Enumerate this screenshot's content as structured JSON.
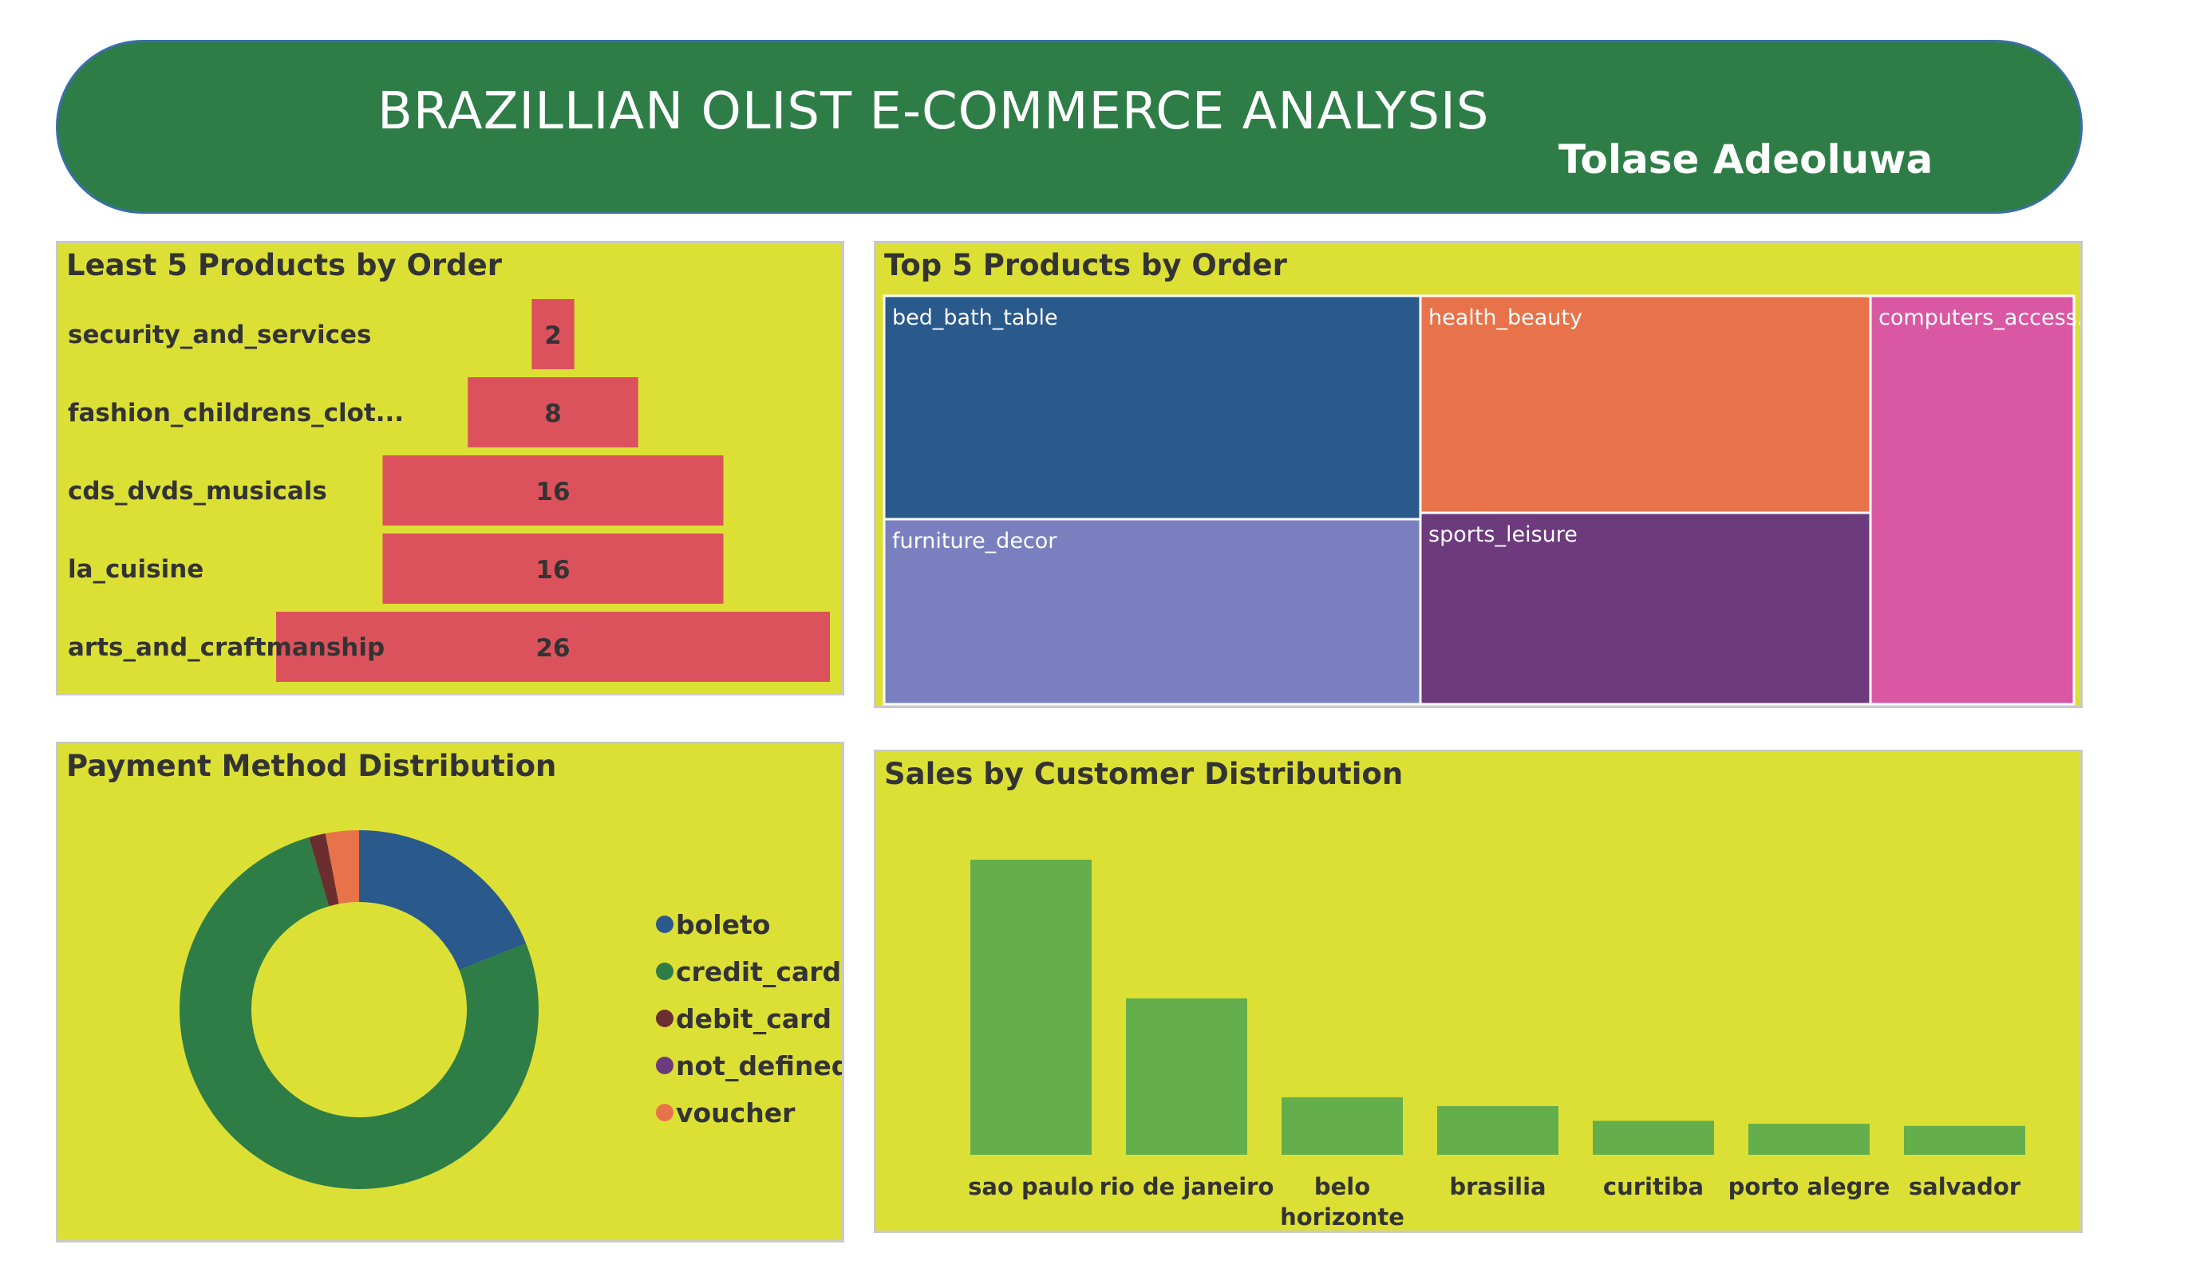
{
  "header": {
    "title": "BRAZILLIAN OLIST E-COMMERCE ANALYSIS",
    "author": "Tolase Adeoluwa"
  },
  "colors": {
    "banner": "#2e7d47",
    "panel": "#dce035",
    "funnel_bar": "#dc525c",
    "sales_bar": "#64ae4c"
  },
  "chart_data": [
    {
      "id": "least",
      "type": "bar",
      "title": "Least 5 Products by Order",
      "categories": [
        "security_and_services",
        "fashion_childrens_clot...",
        "cds_dvds_musicals",
        "la_cuisine",
        "arts_and_craftmanship"
      ],
      "values": [
        2,
        8,
        16,
        16,
        26
      ],
      "orientation": "horizontal-funnel"
    },
    {
      "id": "top",
      "type": "treemap",
      "title": "Top 5 Products by Order",
      "categories": [
        "bed_bath_table",
        "furniture_decor",
        "health_beauty",
        "sports_leisure",
        "computers_access..."
      ],
      "colors": [
        "#2a5a8c",
        "#7a80bf",
        "#e8734a",
        "#6d3a7d",
        "#da57a3"
      ]
    },
    {
      "id": "payment",
      "type": "pie",
      "title": "Payment Method Distribution",
      "categories": [
        "boleto",
        "credit_card",
        "debit_card",
        "not_defined",
        "voucher"
      ],
      "values": [
        19.0,
        76.5,
        1.5,
        0.01,
        3.0
      ],
      "colors": [
        "#2a5a8c",
        "#2e7d47",
        "#6b2e2e",
        "#6d3a7d",
        "#e8734a"
      ],
      "legend": "right"
    },
    {
      "id": "sales",
      "type": "bar",
      "title": "Sales by Customer Distribution",
      "categories": [
        "sao paulo",
        "rio de janeiro",
        "belo horizonte",
        "brasilia",
        "curitiba",
        "porto alegre",
        "salvador"
      ],
      "values": [
        100,
        53,
        19.5,
        16.5,
        11.5,
        10.5,
        9.8
      ]
    }
  ]
}
